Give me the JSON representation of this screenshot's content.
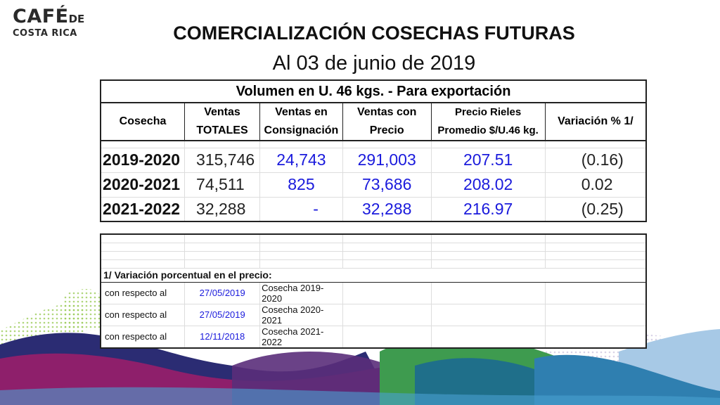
{
  "logo": {
    "line1": "CAFÉ",
    "line1_small": "DE",
    "line2": "COSTA RICA"
  },
  "title": "COMERCIALIZACIÓN COSECHAS FUTURAS",
  "subtitle": "Al 03 de junio de 2019",
  "table": {
    "header": "Volumen en U. 46 kgs. - Para exportación",
    "columns": [
      {
        "line1": "Cosecha",
        "line2": ""
      },
      {
        "line1": "Ventas",
        "line2": "TOTALES"
      },
      {
        "line1": "Ventas en",
        "line2": "Consignación"
      },
      {
        "line1": "Ventas con",
        "line2": "Precio"
      },
      {
        "line1": "Precio Rieles",
        "line2": "Promedio $/U.46 kg."
      },
      {
        "line1": "Variación  % 1/",
        "line2": ""
      }
    ],
    "rows": [
      {
        "cosecha": "2019-2020",
        "totales": "315,746",
        "consignacion": "24,743",
        "precio": "291,003",
        "rieles": "207.51",
        "variacion": "(0.16)"
      },
      {
        "cosecha": "2020-2021",
        "totales": "74,511",
        "consignacion": "825",
        "precio": "73,686",
        "rieles": "208.02",
        "variacion": "0.02"
      },
      {
        "cosecha": "2021-2022",
        "totales": "32,288",
        "consignacion": "-",
        "precio": "32,288",
        "rieles": "216.97",
        "variacion": "(0.25)"
      }
    ]
  },
  "notes": {
    "title": "1/ Variación porcentual en el precio:",
    "rows": [
      {
        "label": "con respecto al",
        "date": "27/05/2019",
        "cosecha": "Cosecha 2019-2020"
      },
      {
        "label": "con respecto al",
        "date": "27/05/2019",
        "cosecha": "Cosecha 2020-2021"
      },
      {
        "label": "con respecto al",
        "date": "12/11/2018",
        "cosecha": "Cosecha 2021-2022"
      }
    ]
  },
  "colors": {
    "value_blue": "#1a1adc",
    "purple": "#8e1f6b",
    "navy": "#2b2c73",
    "green": "#3e9b4f",
    "light_blue": "#9dc3e3",
    "dot_green": "#8cc63f"
  }
}
